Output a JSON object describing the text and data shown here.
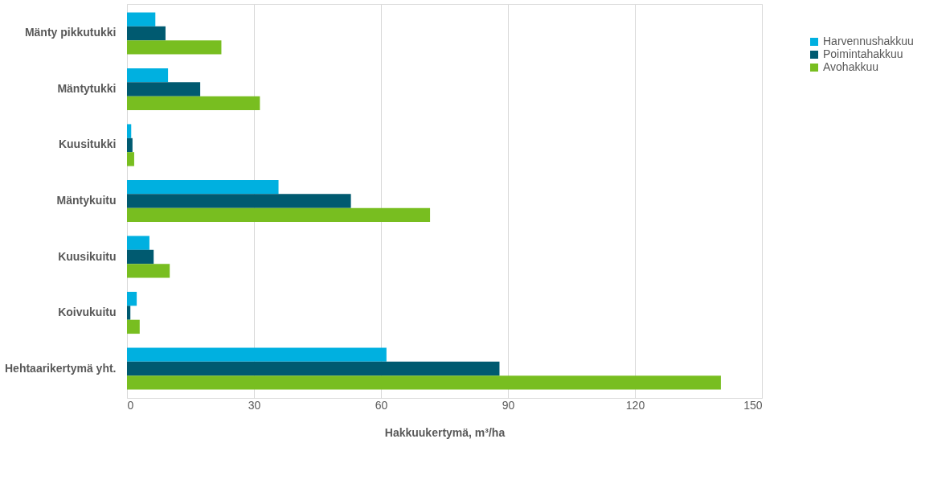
{
  "chart_data": {
    "type": "bar",
    "orientation": "horizontal",
    "xlabel": "Hakkuukertymä, m³/ha",
    "categories": [
      "Mänty pikkutukki",
      "Mäntytukki",
      "Kuusitukki",
      "Mäntykuitu",
      "Kuusikuitu",
      "Koivukuitu",
      "Hehtaarikertymä yht."
    ],
    "series": [
      {
        "name": "Harvennushakkuu",
        "color": "#00b0e0",
        "values": [
          6.7,
          9.7,
          1.0,
          35.8,
          5.3,
          2.3,
          61.3
        ]
      },
      {
        "name": "Poimintahakkuu",
        "color": "#005a70",
        "values": [
          9.1,
          17.3,
          1.3,
          52.9,
          6.3,
          0.8,
          88.0
        ]
      },
      {
        "name": "Avohakkuu",
        "color": "#78be20",
        "values": [
          22.3,
          31.4,
          1.7,
          71.6,
          10.1,
          3.0,
          140.3
        ]
      }
    ],
    "xlim": [
      0,
      150
    ],
    "xticks": [
      0,
      30,
      60,
      90,
      120,
      150
    ],
    "grid": "x",
    "legend": "right"
  }
}
